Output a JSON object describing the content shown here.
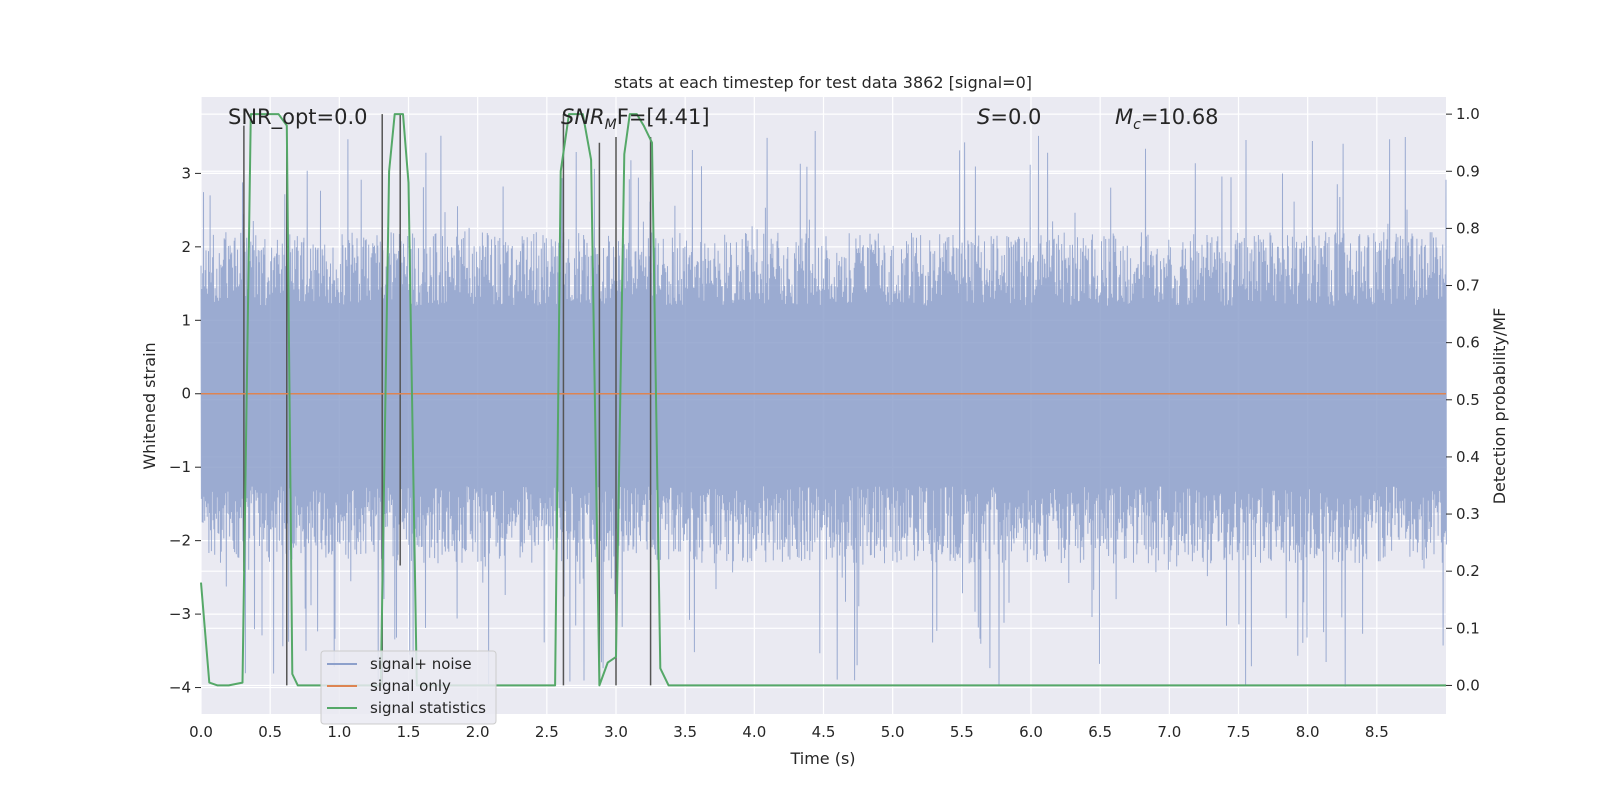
{
  "chart_data": {
    "type": "line",
    "title": "stats at each timestep for test data 3862 [signal=0]",
    "xlabel": "Time (s)",
    "ylabel": "Whitened strain",
    "ylabel_right": "Detection probability/MF",
    "xlim": [
      0,
      9.0
    ],
    "ylim": [
      -4.36,
      4.04
    ],
    "ylim_right": [
      -0.05,
      1.03
    ],
    "x_ticks": [
      0.0,
      0.5,
      1.0,
      1.5,
      2.0,
      2.5,
      3.0,
      3.5,
      4.0,
      4.5,
      5.0,
      5.5,
      6.0,
      6.5,
      7.0,
      7.5,
      8.0,
      8.5
    ],
    "x_tick_labels": [
      "0.0",
      "0.5",
      "1.0",
      "1.5",
      "2.0",
      "2.5",
      "3.0",
      "3.5",
      "4.0",
      "4.5",
      "5.0",
      "5.5",
      "6.0",
      "6.5",
      "7.0",
      "7.5",
      "8.0",
      "8.5"
    ],
    "y_ticks": [
      -4,
      -3,
      -2,
      -1,
      0,
      1,
      2,
      3
    ],
    "y_tick_labels": [
      "−4",
      "−3",
      "−2",
      "−1",
      "0",
      "1",
      "2",
      "3"
    ],
    "y2_ticks": [
      0.0,
      0.1,
      0.2,
      0.3,
      0.4,
      0.5,
      0.6,
      0.7,
      0.8,
      0.9,
      1.0
    ],
    "y2_tick_labels": [
      "0.0",
      "0.1",
      "0.2",
      "0.3",
      "0.4",
      "0.5",
      "0.6",
      "0.7",
      "0.8",
      "0.9",
      "1.0"
    ],
    "grid": true,
    "legend_position": "lower-left",
    "annotations": {
      "snr_opt": "SNR_opt=0.0",
      "snr_mf": "SNR",
      "snr_mf_sub": "M",
      "snr_mf_rest": "F=[4.41]",
      "s_stat": "S",
      "s_stat_rest": "=0.0",
      "mc": "M",
      "mc_sub": "c",
      "mc_rest": "=10.68"
    },
    "series": [
      {
        "name": "signal+ noise",
        "axis": "left",
        "color": "#8da0cb",
        "opacity": 0.85,
        "envelope": {
          "typical_upper": 2.0,
          "typical_lower": -2.1,
          "peak_max": 3.6,
          "peak_min": -4.0
        }
      },
      {
        "name": "signal only",
        "axis": "left",
        "color": "#dd8452",
        "x": [
          0,
          9.0
        ],
        "y": [
          0,
          0
        ]
      },
      {
        "name": "signal statistics",
        "axis": "right",
        "color": "#55a868",
        "x": [
          0.0,
          0.06,
          0.12,
          0.2,
          0.3,
          0.36,
          0.38,
          0.42,
          0.56,
          0.62,
          0.66,
          0.7,
          0.76,
          1.18,
          1.3,
          1.36,
          1.4,
          1.46,
          1.5,
          1.56,
          1.62,
          1.68,
          2.56,
          2.6,
          2.66,
          2.76,
          2.82,
          2.88,
          2.94,
          3.0,
          3.06,
          3.1,
          3.15,
          3.2,
          3.26,
          3.32,
          3.38,
          9.0
        ],
        "y": [
          0.18,
          0.005,
          0.0,
          0.0,
          0.005,
          1.0,
          1.0,
          1.0,
          1.0,
          0.98,
          0.02,
          0.0,
          0.0,
          0.0,
          0.0,
          0.9,
          1.0,
          1.0,
          0.88,
          0.0,
          0.0,
          0.0,
          0.0,
          0.9,
          1.0,
          1.0,
          0.92,
          0.0,
          0.04,
          0.05,
          0.93,
          1.0,
          1.0,
          0.98,
          0.95,
          0.03,
          0.0,
          0.0
        ]
      }
    ],
    "vlines": {
      "color": "#555555",
      "x": [
        0.31,
        0.62,
        1.31,
        1.44,
        2.62,
        2.88,
        3.0,
        3.25
      ],
      "y_top_right": [
        0.98,
        0.98,
        1.0,
        1.0,
        1.0,
        0.95,
        0.96,
        0.96
      ],
      "y_bottom_right": [
        0.2,
        0.0,
        0.0,
        0.21,
        0.0,
        0.0,
        0.0,
        0.0
      ]
    }
  }
}
